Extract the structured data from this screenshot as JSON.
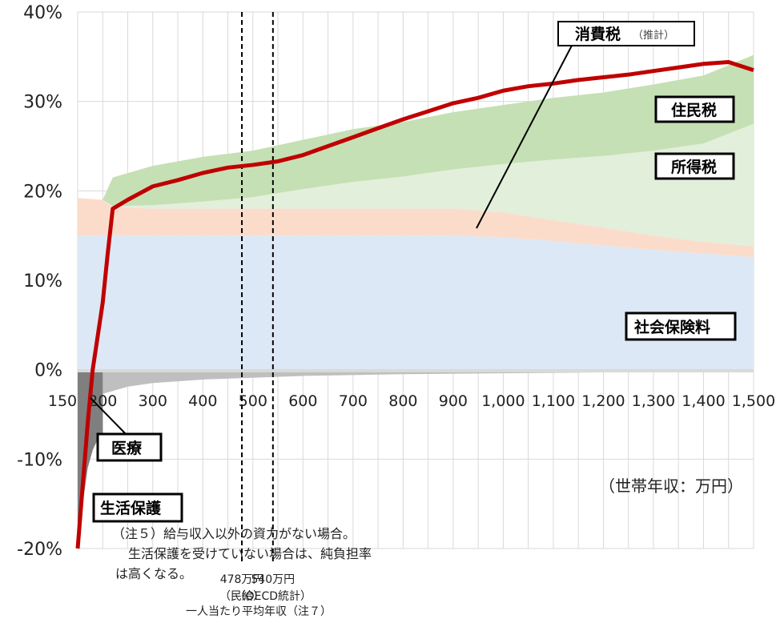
{
  "chart_data": {
    "type": "area",
    "xlabel": "（世帯年収：万円）",
    "ylabel": "",
    "xlim": [
      150,
      1500
    ],
    "ylim": [
      -20,
      40
    ],
    "x_ticks": [
      "150",
      "200",
      "300",
      "400",
      "500",
      "600",
      "700",
      "800",
      "900",
      "1,000",
      "1,100",
      "1,200",
      "1,300",
      "1,400",
      "1,500"
    ],
    "y_ticks": [
      "40%",
      "30%",
      "20%",
      "10%",
      "0%",
      "-10%",
      "-20%"
    ],
    "grid": true,
    "series": [
      {
        "name": "社会保険料",
        "color": "#dce8f5",
        "x": [
          150,
          200,
          220,
          300,
          400,
          500,
          600,
          700,
          800,
          900,
          1000,
          1100,
          1200,
          1300,
          1400,
          1500
        ],
        "values": [
          15.0,
          15.0,
          15.0,
          15.0,
          15.0,
          15.0,
          15.0,
          15.0,
          15.0,
          15.0,
          14.8,
          14.4,
          13.9,
          13.4,
          13.0,
          12.6
        ]
      },
      {
        "name": "所得税",
        "color": "#fbdccb",
        "x": [
          150,
          200,
          220,
          300,
          400,
          500,
          600,
          700,
          800,
          900,
          1000,
          1100,
          1200,
          1300,
          1400,
          1500
        ],
        "values": [
          4.2,
          4.0,
          3.2,
          3.0,
          3.0,
          3.0,
          3.0,
          3.0,
          3.0,
          3.0,
          2.8,
          2.3,
          2.0,
          1.6,
          1.3,
          1.2
        ]
      },
      {
        "name": "所得税",
        "color": "#e2efda",
        "x": [
          150,
          200,
          220,
          300,
          400,
          500,
          600,
          700,
          800,
          900,
          1000,
          1100,
          1200,
          1300,
          1400,
          1500
        ],
        "values": [
          0,
          0,
          0.1,
          0.4,
          0.8,
          1.3,
          2.2,
          3.0,
          3.6,
          4.4,
          5.4,
          6.8,
          8.0,
          9.5,
          11.0,
          13.7
        ]
      },
      {
        "name": "住民税",
        "color": "#c5e0b4",
        "x": [
          150,
          200,
          220,
          300,
          400,
          500,
          600,
          700,
          800,
          900,
          1000,
          1100,
          1200,
          1300,
          1400,
          1500
        ],
        "values": [
          0,
          0,
          3.2,
          4.4,
          5.0,
          5.2,
          5.5,
          5.9,
          6.1,
          6.4,
          6.6,
          6.9,
          7.1,
          7.4,
          7.6,
          7.7
        ]
      }
    ],
    "lines": [
      {
        "name": "消費税（推計）",
        "color": "#c00000",
        "x": [
          150,
          160,
          170,
          180,
          200,
          210,
          220,
          250,
          300,
          350,
          400,
          450,
          500,
          550,
          600,
          650,
          700,
          750,
          800,
          850,
          900,
          950,
          1000,
          1050,
          1100,
          1150,
          1200,
          1250,
          1300,
          1350,
          1400,
          1450,
          1500
        ],
        "values": [
          -20,
          -13,
          -6,
          0,
          7.5,
          13,
          18,
          19,
          20.5,
          21.2,
          22,
          22.6,
          22.9,
          23.3,
          24,
          25,
          26,
          27,
          28,
          28.9,
          29.8,
          30.4,
          31.2,
          31.7,
          32,
          32.4,
          32.7,
          33,
          33.4,
          33.8,
          34.2,
          34.4,
          33.5
        ]
      },
      {
        "name": "医療",
        "color": "#bfbfbf",
        "x": [
          150,
          175,
          200,
          250,
          300,
          400,
          500,
          600,
          700,
          800,
          1000,
          1200,
          1500
        ],
        "values": [
          -5.5,
          -3.8,
          -2.7,
          -1.9,
          -1.5,
          -1.1,
          -0.9,
          -0.7,
          -0.6,
          -0.5,
          -0.4,
          -0.3,
          -0.2
        ]
      },
      {
        "name": "生活保護",
        "color": "#7f7f7f",
        "x": [
          150,
          160,
          170,
          180,
          190,
          200
        ],
        "values": [
          -20,
          -15,
          -11,
          -9,
          -7.8,
          -7.2
        ]
      }
    ],
    "reference_lines": [
      {
        "x": 478,
        "label": "478万円",
        "sublabel": "（民給）"
      },
      {
        "x": 540,
        "label": "540万円",
        "sublabel": "（OECD統計）"
      }
    ],
    "annotations": {
      "consumption_tax": "消費税",
      "consumption_tax_sub": "（推計）",
      "resident_tax": "住民税",
      "income_tax": "所得税",
      "social_insurance": "社会保険料",
      "medical": "医療",
      "welfare": "生活保護",
      "note_line1": "（注５）給与収入以外の資力がない場合。",
      "note_line2": "生活保護を受けていない場合は、純負担率",
      "note_line3": "は高くなる。",
      "avg_income": "一人当たり平均年収（注７）"
    }
  }
}
